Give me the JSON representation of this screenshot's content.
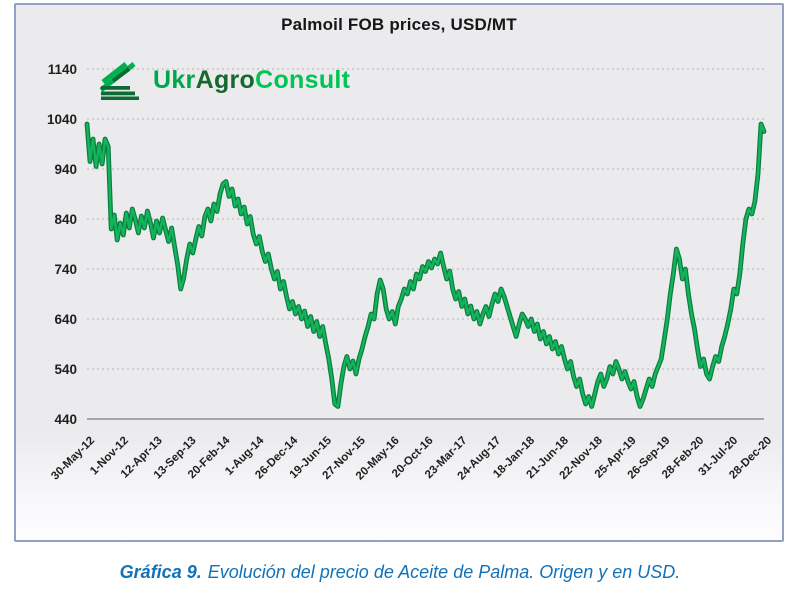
{
  "figure": {
    "title": "Palmoil FOB prices, USD/MT",
    "logo": {
      "ukr": "Ukr",
      "agro": "Agro",
      "consult": "Consult",
      "ukr_color": "#00a74a",
      "agro_color": "#17672e",
      "consult_color": "#00c455"
    },
    "caption": {
      "label": "Gráfica 9.",
      "text": "Evolución del precio de Aceite de Palma. Origen y en USD.",
      "color": "#1272b8"
    }
  },
  "chart_data": {
    "type": "line",
    "title": "Palmoil FOB prices, USD/MT",
    "series_name": "Palmoil FOB price, USD/MT",
    "ylim": [
      440,
      1140
    ],
    "y_ticks": [
      1140,
      1040,
      940,
      840,
      740,
      640,
      540,
      440
    ],
    "grid": "horizontal-dotted",
    "legend": "none",
    "line_color": "#12b45c",
    "line_edge_color": "#0e7c3f",
    "grid_color": "#b6b6b8",
    "axis_color": "#9c9ca0",
    "tick_label_color": "#1f1f1f",
    "x_tick_labels": [
      "30-May-12",
      "1-Nov-12",
      "12-Apr-13",
      "13-Sep-13",
      "20-Feb-14",
      "1-Aug-14",
      "26-Dec-14",
      "19-Jun-15",
      "27-Nov-15",
      "20-May-16",
      "20-Oct-16",
      "23-Mar-17",
      "24-Aug-17",
      "18-Jan-18",
      "21-Jun-18",
      "22-Nov-18",
      "25-Apr-19",
      "26-Sep-19",
      "28-Feb-20",
      "31-Jul-20",
      "28-Dec-20"
    ],
    "values": [
      1030,
      955,
      1000,
      945,
      990,
      950,
      1000,
      985,
      820,
      848,
      798,
      832,
      808,
      852,
      822,
      860,
      838,
      812,
      846,
      822,
      856,
      832,
      802,
      836,
      812,
      842,
      818,
      795,
      822,
      785,
      748,
      700,
      722,
      760,
      790,
      772,
      800,
      825,
      806,
      845,
      860,
      836,
      870,
      855,
      890,
      910,
      915,
      885,
      900,
      866,
      880,
      850,
      864,
      830,
      845,
      810,
      790,
      805,
      775,
      755,
      770,
      740,
      720,
      735,
      700,
      715,
      685,
      660,
      675,
      650,
      665,
      640,
      656,
      625,
      645,
      615,
      635,
      605,
      625,
      590,
      560,
      520,
      470,
      465,
      510,
      545,
      565,
      540,
      556,
      530,
      560,
      580,
      605,
      625,
      650,
      640,
      690,
      718,
      700,
      660,
      640,
      655,
      630,
      665,
      680,
      700,
      690,
      715,
      700,
      730,
      720,
      745,
      735,
      755,
      742,
      760,
      750,
      772,
      745,
      720,
      736,
      700,
      680,
      695,
      665,
      680,
      650,
      666,
      640,
      655,
      630,
      650,
      665,
      645,
      670,
      690,
      675,
      700,
      685,
      665,
      645,
      625,
      605,
      630,
      650,
      640,
      625,
      640,
      615,
      630,
      600,
      615,
      590,
      605,
      580,
      595,
      570,
      585,
      560,
      540,
      555,
      525,
      505,
      520,
      490,
      470,
      485,
      465,
      490,
      515,
      530,
      505,
      520,
      545,
      530,
      555,
      540,
      520,
      535,
      515,
      500,
      515,
      485,
      465,
      480,
      500,
      520,
      505,
      530,
      545,
      560,
      600,
      640,
      690,
      730,
      780,
      760,
      720,
      740,
      690,
      650,
      620,
      580,
      545,
      560,
      530,
      520,
      545,
      565,
      555,
      585,
      605,
      630,
      660,
      700,
      690,
      730,
      790,
      840,
      860,
      850,
      875,
      930,
      1030,
      1015
    ]
  }
}
